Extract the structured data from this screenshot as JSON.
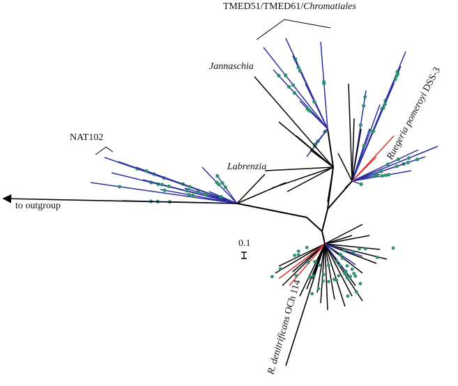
{
  "labels": {
    "top_clade": {
      "text": "TMED51/TMED61/",
      "italic": "Chromatiales"
    },
    "jannaschia": "Jannaschia",
    "labrenzia": "Labrenzia",
    "nat102": "NAT102",
    "outgroup": "to outgroup",
    "scale": "0.1",
    "ruegeria": {
      "italic": "Ruegeria pomeroyi",
      "text": " DSS-3"
    },
    "denitrificans": {
      "italic": "R. denitrificans",
      "text": " OCh 114"
    }
  }
}
